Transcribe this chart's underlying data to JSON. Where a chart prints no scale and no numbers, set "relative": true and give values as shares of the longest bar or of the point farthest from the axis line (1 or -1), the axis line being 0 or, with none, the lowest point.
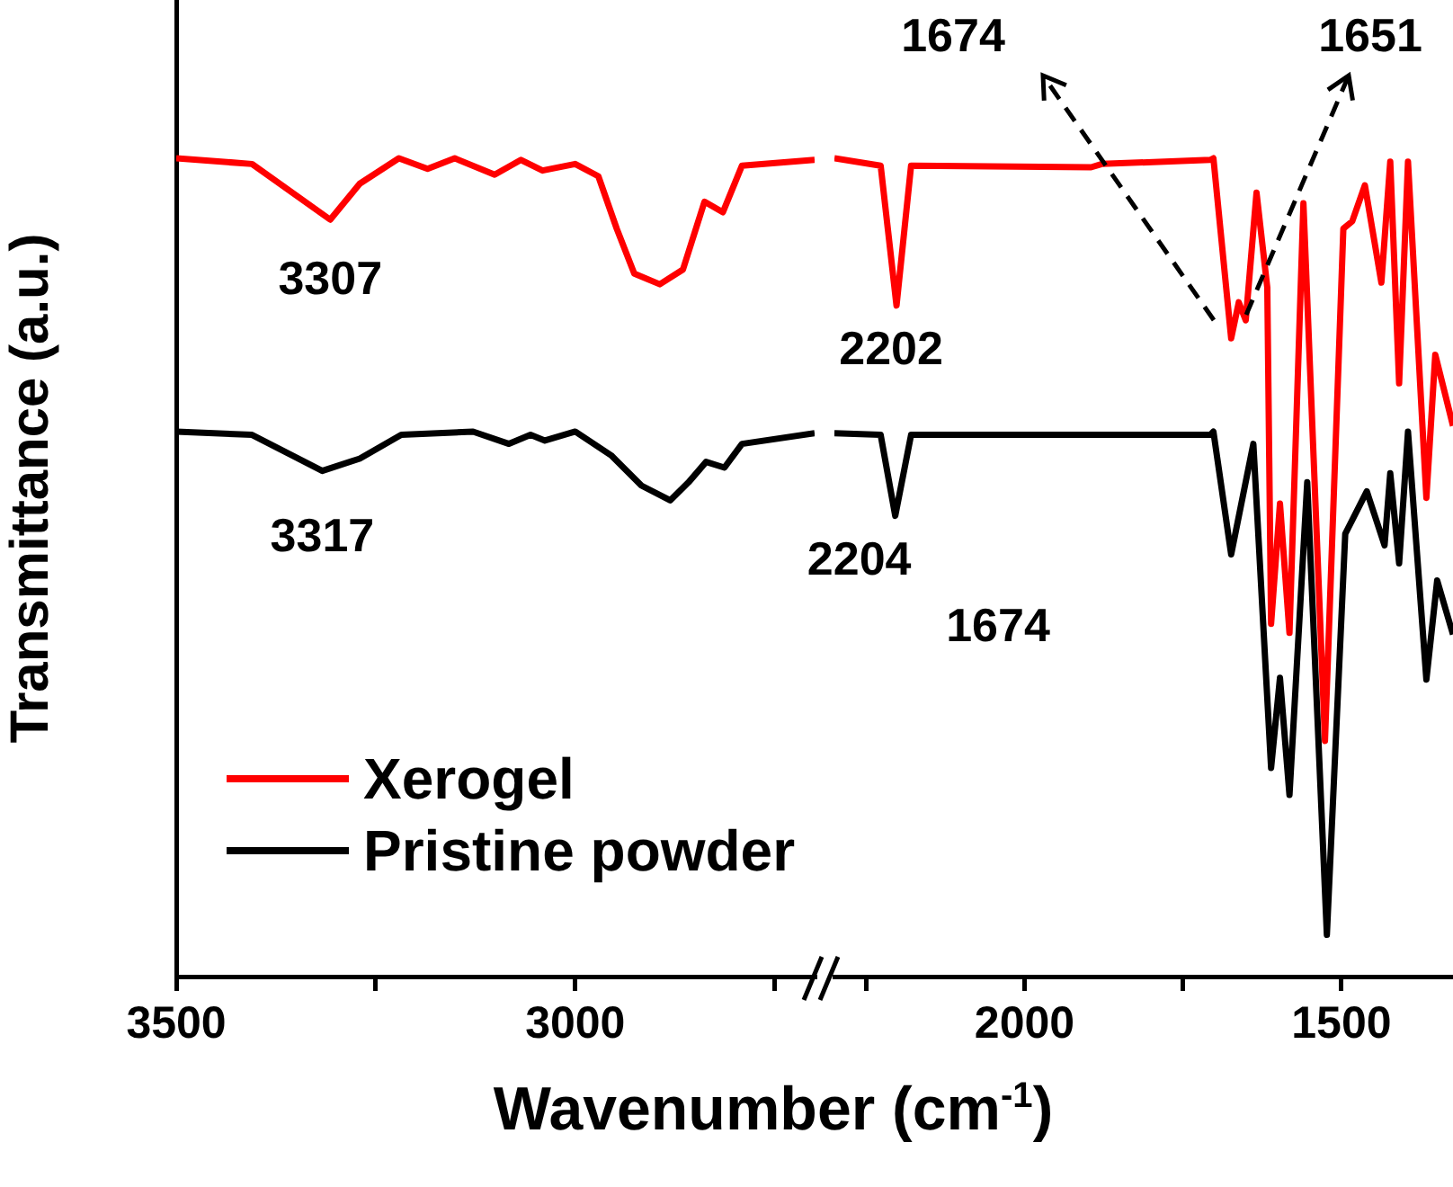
{
  "chart_data": [
    {
      "type": "line",
      "relative": true,
      "ylabel": "Transmittance (a.u.)",
      "xlabel": "Wavenumber (cm$^{-1}$)",
      "legend": "bottom left",
      "xlim": [
        3500,
        2700
      ],
      "xticks": [
        3500,
        {
          "value": 3250,
          "label": null
        },
        3000,
        {
          "value": 2750,
          "label": null
        }
      ],
      "series": [
        {
          "name": "Xerogel",
          "color": "#ff0000",
          "x": [
            3500,
            3405,
            3307,
            3270,
            3221,
            3185,
            3151,
            3101,
            3068,
            3041,
            3000,
            2971,
            2948,
            2926,
            2894,
            2865,
            2838,
            2815,
            2791,
            2700
          ],
          "values": [
            1.0,
            0.993,
            0.925,
            0.969,
            1.0,
            0.987,
            1.0,
            0.98,
            0.998,
            0.985,
            0.993,
            0.978,
            0.914,
            0.859,
            0.846,
            0.864,
            0.947,
            0.934,
            0.991,
            0.998
          ]
        },
        {
          "name": "Pristine powder",
          "color": "#000000",
          "x": [
            3500,
            3405,
            3317,
            3270,
            3218,
            3128,
            3083,
            3056,
            3038,
            3000,
            2955,
            2917,
            2881,
            2858,
            2836,
            2813,
            2791,
            2700
          ],
          "values": [
            0.666,
            0.662,
            0.618,
            0.633,
            0.662,
            0.666,
            0.651,
            0.662,
            0.655,
            0.666,
            0.637,
            0.6,
            0.582,
            0.604,
            0.629,
            0.622,
            0.651,
            0.664
          ]
        }
      ],
      "annotations": [
        {
          "text": "3307",
          "x": 3307,
          "y": 0.925
        },
        {
          "text": "3317",
          "x": 3317,
          "y": 0.618
        }
      ]
    },
    {
      "type": "line",
      "relative": true,
      "xlim": [
        2300,
        1324
      ],
      "xticks": [
        {
          "value": 2250,
          "label": null
        },
        2000,
        {
          "value": 1750,
          "label": null
        },
        1500
      ],
      "series": [
        {
          "color": "#ff0000",
          "x": [
            2300,
            2227,
            2202,
            2179,
            1895,
            1878,
            1707,
            1702,
            1674,
            1662,
            1651,
            1634,
            1617,
            1611,
            1597,
            1582,
            1560,
            1526,
            1497,
            1483,
            1463,
            1437,
            1423,
            1409,
            1395,
            1366,
            1352,
            1324
          ],
          "values": [
            1.0,
            0.991,
            0.82,
            0.991,
            0.989,
            0.993,
            0.998,
            1.0,
            0.78,
            0.824,
            0.802,
            0.958,
            0.842,
            0.431,
            0.578,
            0.42,
            0.945,
            0.288,
            0.914,
            0.923,
            0.967,
            0.848,
            0.996,
            0.725,
            0.996,
            0.585,
            0.76,
            0.673
          ]
        },
        {
          "color": "#000000",
          "x": [
            2300,
            2227,
            2204,
            2179,
            1707,
            1702,
            1674,
            1639,
            1611,
            1597,
            1582,
            1554,
            1523,
            1494,
            1460,
            1432,
            1423,
            1409,
            1395,
            1366,
            1349,
            1324
          ],
          "values": [
            0.664,
            0.662,
            0.563,
            0.662,
            0.662,
            0.666,
            0.516,
            0.651,
            0.255,
            0.365,
            0.222,
            0.604,
            0.051,
            0.541,
            0.593,
            0.527,
            0.615,
            0.505,
            0.666,
            0.363,
            0.484,
            0.418
          ]
        }
      ],
      "annotations": [
        {
          "text": "2202",
          "x": 2202,
          "y": 0.82
        },
        {
          "text": "2204",
          "x": 2204,
          "y": 0.563
        },
        "1674",
        "1651",
        "1674"
      ]
    }
  ]
}
